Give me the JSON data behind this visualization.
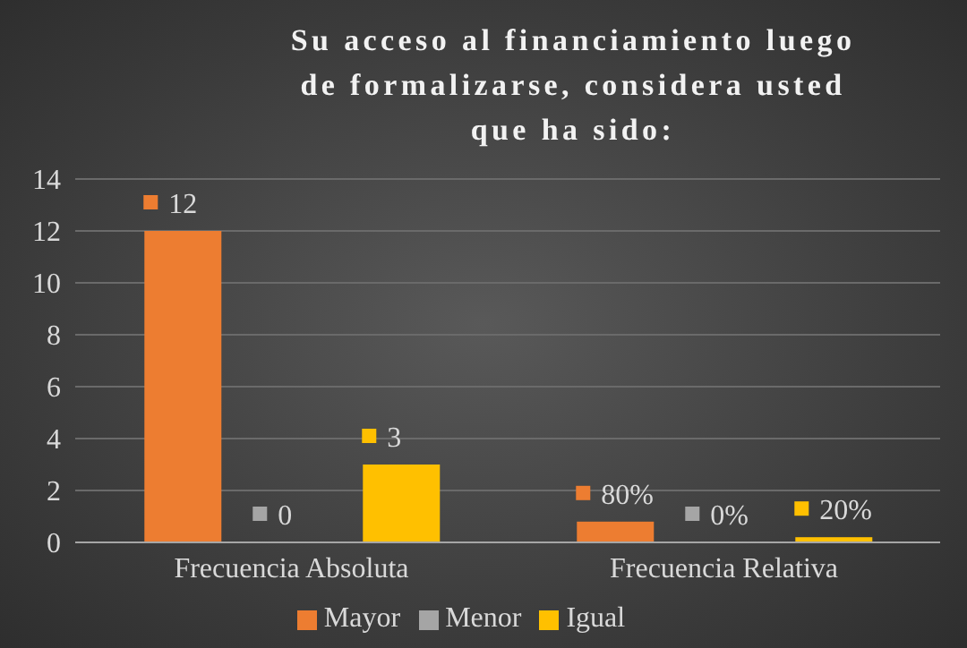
{
  "chart_data": {
    "type": "bar",
    "title": "Su acceso al financiamiento luego de formalizarse, considera usted que ha sido:",
    "categories": [
      "Frecuencia Absoluta",
      "Frecuencia Relativa"
    ],
    "series": [
      {
        "name": "Mayor",
        "color": "#ed7d31",
        "values": [
          12,
          0.8
        ],
        "value_labels": [
          "12",
          "80%"
        ]
      },
      {
        "name": "Menor",
        "color": "#a5a5a5",
        "values": [
          0,
          0
        ],
        "value_labels": [
          "0",
          "0%"
        ]
      },
      {
        "name": "Igual",
        "color": "#ffc000",
        "values": [
          3,
          0.2
        ],
        "value_labels": [
          "3",
          "20%"
        ]
      }
    ],
    "ylim": [
      0,
      14
    ],
    "yticks": [
      0,
      2,
      4,
      6,
      8,
      10,
      12,
      14
    ],
    "grid": "y",
    "legend": "bottom"
  }
}
